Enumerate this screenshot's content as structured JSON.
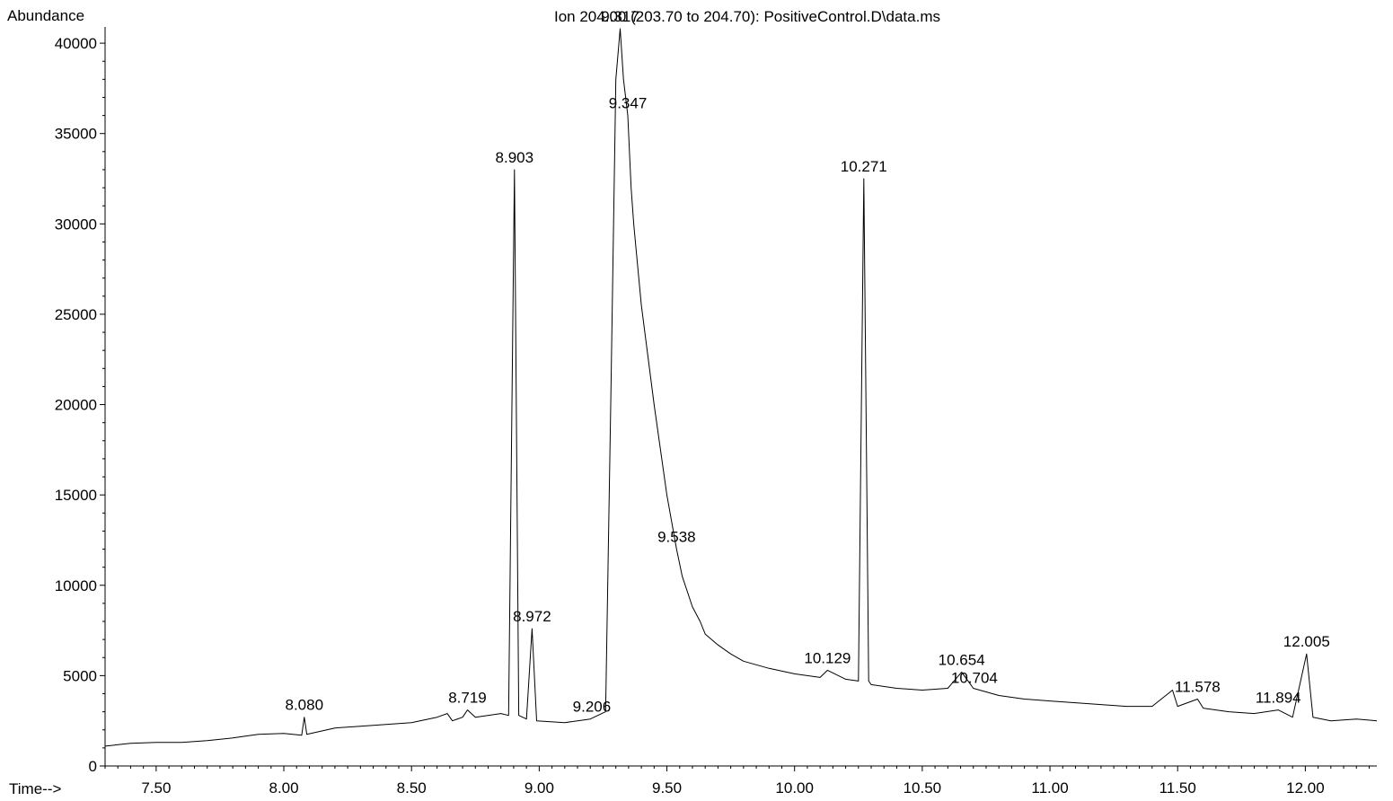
{
  "chart_data": {
    "type": "line",
    "title": "Ion 204.00 (203.70 to 204.70): PositiveControl.D\\data.ms",
    "ylabel": "Abundance",
    "xlabel": "Time-->",
    "xlim": [
      7.3,
      12.28
    ],
    "ylim": [
      0,
      40800
    ],
    "x_ticks": [
      "7.50",
      "8.00",
      "8.50",
      "9.00",
      "9.50",
      "10.00",
      "10.50",
      "11.00",
      "11.50",
      "12.00"
    ],
    "x_tick_values": [
      7.5,
      8.0,
      8.5,
      9.0,
      9.5,
      10.0,
      10.5,
      11.0,
      11.5,
      12.0
    ],
    "y_ticks": [
      "0",
      "5000",
      "10000",
      "15000",
      "20000",
      "25000",
      "30000",
      "35000",
      "40000"
    ],
    "y_tick_values": [
      0,
      5000,
      10000,
      15000,
      20000,
      25000,
      30000,
      35000,
      40000
    ],
    "grid": false,
    "series": [
      {
        "x": [
          7.3,
          7.4,
          7.5,
          7.6,
          7.7,
          7.8,
          7.9,
          8.0,
          8.07,
          8.08,
          8.09,
          8.2,
          8.3,
          8.4,
          8.5,
          8.6,
          8.64,
          8.66,
          8.7,
          8.719,
          8.75,
          8.85,
          8.88,
          8.903,
          8.92,
          8.95,
          8.972,
          8.99,
          9.1,
          9.2,
          9.26,
          9.28,
          9.3,
          9.317,
          9.33,
          9.347,
          9.36,
          9.37,
          9.38,
          9.4,
          9.45,
          9.5,
          9.538,
          9.56,
          9.6,
          9.63,
          9.65,
          9.7,
          9.75,
          9.8,
          9.9,
          10.0,
          10.1,
          10.129,
          10.2,
          10.25,
          10.271,
          10.29,
          10.3,
          10.4,
          10.5,
          10.6,
          10.654,
          10.7,
          10.8,
          10.9,
          11.0,
          11.1,
          11.2,
          11.3,
          11.4,
          11.48,
          11.5,
          11.578,
          11.6,
          11.7,
          11.8,
          11.894,
          11.95,
          12.005,
          12.03,
          12.1,
          12.2,
          12.28
        ],
        "y": [
          1100,
          1250,
          1300,
          1300,
          1400,
          1550,
          1750,
          1800,
          1700,
          2700,
          1750,
          2100,
          2200,
          2300,
          2400,
          2700,
          2900,
          2500,
          2700,
          3100,
          2700,
          2900,
          2800,
          33000,
          2800,
          2600,
          7600,
          2500,
          2400,
          2600,
          3000,
          20000,
          38000,
          40800,
          38000,
          36000,
          32000,
          30000,
          28500,
          25500,
          20000,
          15000,
          12000,
          10500,
          8800,
          8000,
          7300,
          6700,
          6200,
          5800,
          5400,
          5100,
          4900,
          5300,
          4800,
          4700,
          32500,
          4700,
          4500,
          4300,
          4200,
          4300,
          5200,
          4300,
          3900,
          3700,
          3600,
          3500,
          3400,
          3300,
          3300,
          4200,
          3300,
          3700,
          3200,
          3000,
          2900,
          3100,
          2700,
          6200,
          2700,
          2500,
          2600,
          2500
        ]
      }
    ],
    "peak_labels": [
      {
        "text": "8.080",
        "x": 8.08,
        "y": 2700
      },
      {
        "text": "8.719",
        "x": 8.719,
        "y": 3100
      },
      {
        "text": "8.903",
        "x": 8.903,
        "y": 33000
      },
      {
        "text": "8.972",
        "x": 8.972,
        "y": 7600
      },
      {
        "text": "9.206",
        "x": 9.206,
        "y": 2600
      },
      {
        "text": "9.317",
        "x": 9.317,
        "y": 40800
      },
      {
        "text": "9.347",
        "x": 9.347,
        "y": 36000
      },
      {
        "text": "9.538",
        "x": 9.538,
        "y": 12000
      },
      {
        "text": "10.129",
        "x": 10.129,
        "y": 5300
      },
      {
        "text": "10.271",
        "x": 10.271,
        "y": 32500
      },
      {
        "text": "10.654",
        "x": 10.654,
        "y": 5200
      },
      {
        "text": "10.704",
        "x": 10.704,
        "y": 4200
      },
      {
        "text": "11.578",
        "x": 11.578,
        "y": 3700
      },
      {
        "text": "11.894",
        "x": 11.894,
        "y": 3100
      },
      {
        "text": "12.005",
        "x": 12.005,
        "y": 6200
      }
    ]
  }
}
